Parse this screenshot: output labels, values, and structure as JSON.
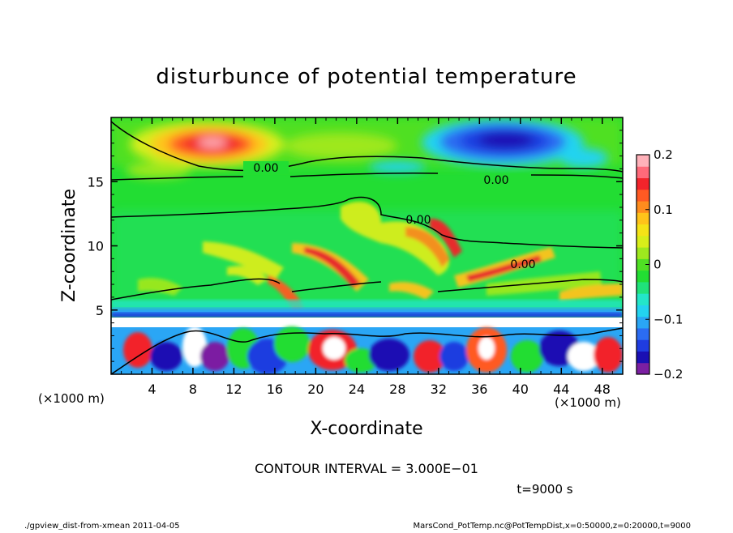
{
  "chart_data": {
    "type": "heatmap",
    "title": "disturbunce of potential temperature",
    "xlabel": "X-coordinate",
    "ylabel": "Z-coordinate",
    "x_unit_left": "(×1000 m)",
    "x_unit_right": "(×1000 m)",
    "xlim": [
      0,
      50
    ],
    "ylim": [
      0,
      20
    ],
    "x_ticks": [
      "4",
      "8",
      "12",
      "16",
      "20",
      "24",
      "28",
      "32",
      "36",
      "40",
      "44",
      "48"
    ],
    "y_ticks": [
      "5",
      "10",
      "15"
    ],
    "colorbar": {
      "range": [
        -0.2,
        0.2
      ],
      "tick_labels": [
        "0.2",
        "0.1",
        "0",
        "−0.1",
        "−0.2"
      ],
      "colors": [
        "#7b1fa2",
        "#1a0fb3",
        "#1f3ce0",
        "#2b6cf2",
        "#2aa6f5",
        "#23d3f0",
        "#23e6c8",
        "#20e27a",
        "#22dd33",
        "#4fe024",
        "#9ee81e",
        "#d8ee1a",
        "#f5e317",
        "#ffc31a",
        "#ff8c1e",
        "#ff5a23",
        "#f2242b",
        "#ff6a7a",
        "#ffb1b9"
      ]
    },
    "contour_labels": [
      "0.00",
      "0.00",
      "0.00",
      "0.00"
    ],
    "contour_interval_text": "CONTOUR INTERVAL = 3.000E−01",
    "time_text": "t=9000 s"
  },
  "footer": {
    "left": "./gpview_dist-from-xmean   2011-04-05",
    "right": "MarsCond_PotTemp.nc@PotTempDist,x=0:50000,z=0:20000,t=9000"
  }
}
